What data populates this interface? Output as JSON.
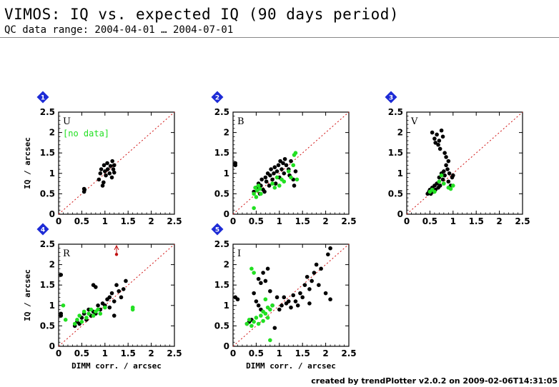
{
  "header": {
    "title": "VIMOS: IQ vs. expected IQ (90 days period)",
    "subtitle": "QC data range: 2004-04-01 … 2004-07-01"
  },
  "footer": {
    "text": "created by trendPlotter v2.0.2 on 2009-02-06T14:31:05"
  },
  "colors": {
    "accent_badge": "#1d2bd6",
    "diagonal": "#d01010",
    "series_black": "#000000",
    "series_green": "#22e022",
    "outlier_marker": "#c01010"
  },
  "chart_data": [
    {
      "type": "scatter",
      "panel": "1",
      "label": "U",
      "note": "[no data]",
      "xlabel": "",
      "ylabel": "IQ / arcsec",
      "xlim": [
        0,
        2.5
      ],
      "ylim": [
        0,
        2.5
      ],
      "x_ticks": [
        "0",
        "0.5",
        "1",
        "1.5",
        "2",
        "2.5"
      ],
      "y_ticks": [
        "0",
        "0.5",
        "1",
        "1.5",
        "2",
        "2.5"
      ],
      "reference_line": "y = x",
      "series": [
        {
          "color": "black",
          "points": [
            [
              0.55,
              0.55
            ],
            [
              0.55,
              0.62
            ],
            [
              0.56,
              0.6
            ],
            [
              0.87,
              0.85
            ],
            [
              0.9,
              1.0
            ],
            [
              0.92,
              1.1
            ],
            [
              0.95,
              0.7
            ],
            [
              0.97,
              0.78
            ],
            [
              0.98,
              1.2
            ],
            [
              1.0,
              1.05
            ],
            [
              1.02,
              0.95
            ],
            [
              1.05,
              1.25
            ],
            [
              1.06,
              1.1
            ],
            [
              1.1,
              1.0
            ],
            [
              1.12,
              1.18
            ],
            [
              1.15,
              0.9
            ],
            [
              1.16,
              1.3
            ],
            [
              1.18,
              1.1
            ],
            [
              1.2,
              1.2
            ],
            [
              1.2,
              1.02
            ]
          ]
        },
        {
          "color": "green",
          "points": []
        }
      ]
    },
    {
      "type": "scatter",
      "panel": "2",
      "label": "B",
      "xlabel": "",
      "ylabel": "",
      "xlim": [
        0,
        2.5
      ],
      "ylim": [
        0,
        2.5
      ],
      "x_ticks": [
        "0",
        "0.5",
        "1",
        "1.5",
        "2",
        "2.5"
      ],
      "y_ticks": [
        "0",
        "0.5",
        "1",
        "1.5",
        "2",
        "2.5"
      ],
      "reference_line": "y = x",
      "series": [
        {
          "color": "black",
          "points": [
            [
              0.05,
              1.25
            ],
            [
              0.05,
              1.2
            ],
            [
              0.45,
              0.55
            ],
            [
              0.5,
              0.65
            ],
            [
              0.55,
              0.75
            ],
            [
              0.6,
              0.7
            ],
            [
              0.62,
              0.85
            ],
            [
              0.65,
              0.6
            ],
            [
              0.7,
              0.9
            ],
            [
              0.72,
              0.8
            ],
            [
              0.75,
              1.0
            ],
            [
              0.78,
              0.7
            ],
            [
              0.8,
              0.95
            ],
            [
              0.82,
              1.1
            ],
            [
              0.85,
              0.85
            ],
            [
              0.88,
              1.0
            ],
            [
              0.9,
              1.15
            ],
            [
              0.92,
              0.75
            ],
            [
              0.95,
              1.05
            ],
            [
              0.98,
              1.2
            ],
            [
              1.0,
              0.9
            ],
            [
              1.02,
              1.3
            ],
            [
              1.05,
              1.1
            ],
            [
              1.08,
              1.25
            ],
            [
              1.1,
              1.0
            ],
            [
              1.12,
              1.35
            ],
            [
              1.15,
              1.2
            ],
            [
              1.2,
              1.1
            ],
            [
              1.22,
              0.95
            ],
            [
              1.25,
              1.3
            ],
            [
              1.3,
              0.85
            ],
            [
              1.32,
              0.7
            ],
            [
              1.35,
              1.05
            ],
            [
              0.68,
              0.55
            ],
            [
              0.58,
              0.5
            ]
          ]
        },
        {
          "color": "green",
          "points": [
            [
              0.45,
              0.15
            ],
            [
              0.45,
              0.5
            ],
            [
              0.48,
              0.65
            ],
            [
              0.5,
              0.42
            ],
            [
              0.52,
              0.58
            ],
            [
              0.55,
              0.7
            ],
            [
              0.58,
              0.62
            ],
            [
              0.6,
              0.5
            ],
            [
              0.85,
              0.75
            ],
            [
              0.9,
              0.65
            ],
            [
              0.95,
              0.9
            ],
            [
              1.0,
              0.7
            ],
            [
              1.05,
              0.85
            ],
            [
              1.1,
              0.8
            ],
            [
              1.2,
              1.05
            ],
            [
              1.25,
              0.9
            ],
            [
              1.3,
              1.2
            ],
            [
              1.32,
              1.45
            ],
            [
              1.35,
              1.5
            ],
            [
              1.38,
              0.85
            ]
          ]
        }
      ]
    },
    {
      "type": "scatter",
      "panel": "3",
      "label": "V",
      "xlabel": "",
      "ylabel": "",
      "xlim": [
        0,
        2.5
      ],
      "ylim": [
        0,
        2.5
      ],
      "x_ticks": [
        "0",
        "0.5",
        "1",
        "1.5",
        "2",
        "2.5"
      ],
      "y_ticks": [
        "0",
        "0.5",
        "1",
        "1.5",
        "2",
        "2.5"
      ],
      "reference_line": "y = x",
      "series": [
        {
          "color": "black",
          "points": [
            [
              0.45,
              0.5
            ],
            [
              0.48,
              0.55
            ],
            [
              0.5,
              0.6
            ],
            [
              0.52,
              0.5
            ],
            [
              0.55,
              0.65
            ],
            [
              0.58,
              0.55
            ],
            [
              0.6,
              0.7
            ],
            [
              0.62,
              0.6
            ],
            [
              0.65,
              0.75
            ],
            [
              0.68,
              0.65
            ],
            [
              0.7,
              0.9
            ],
            [
              0.72,
              0.7
            ],
            [
              0.75,
              1.0
            ],
            [
              0.78,
              0.85
            ],
            [
              0.8,
              1.05
            ],
            [
              0.82,
              0.95
            ],
            [
              0.85,
              1.2
            ],
            [
              0.88,
              1.1
            ],
            [
              0.9,
              0.8
            ],
            [
              0.92,
              1.0
            ],
            [
              0.95,
              0.7
            ],
            [
              0.98,
              0.9
            ],
            [
              1.0,
              0.95
            ],
            [
              0.6,
              1.85
            ],
            [
              0.62,
              1.75
            ],
            [
              0.65,
              1.95
            ],
            [
              0.68,
              1.7
            ],
            [
              0.7,
              1.8
            ],
            [
              0.72,
              1.6
            ],
            [
              0.75,
              2.05
            ],
            [
              0.78,
              1.9
            ],
            [
              0.55,
              2.0
            ],
            [
              0.85,
              1.4
            ],
            [
              0.9,
              1.3
            ],
            [
              0.82,
              1.5
            ]
          ]
        },
        {
          "color": "green",
          "points": [
            [
              0.5,
              0.55
            ],
            [
              0.55,
              0.6
            ],
            [
              0.6,
              0.55
            ],
            [
              0.7,
              0.8
            ],
            [
              0.75,
              0.95
            ],
            [
              0.8,
              0.75
            ],
            [
              0.9,
              0.65
            ],
            [
              0.95,
              0.62
            ],
            [
              1.0,
              0.7
            ]
          ]
        }
      ]
    },
    {
      "type": "scatter",
      "panel": "4",
      "label": "R",
      "xlabel": "DIMM corr. / arcsec",
      "ylabel": "IQ / arcsec",
      "xlim": [
        0,
        2.5
      ],
      "ylim": [
        0,
        2.5
      ],
      "x_ticks": [
        "0",
        "0.5",
        "1",
        "1.5",
        "2",
        "2.5"
      ],
      "y_ticks": [
        "0",
        "0.5",
        "1",
        "1.5",
        "2",
        "2.5"
      ],
      "reference_line": "y = x",
      "outlier": {
        "x": 1.25,
        "y": 2.25,
        "arrow": "up"
      },
      "series": [
        {
          "color": "black",
          "points": [
            [
              0.05,
              1.75
            ],
            [
              0.05,
              0.8
            ],
            [
              0.05,
              0.75
            ],
            [
              0.35,
              0.5
            ],
            [
              0.4,
              0.6
            ],
            [
              0.45,
              0.55
            ],
            [
              0.5,
              0.7
            ],
            [
              0.55,
              0.8
            ],
            [
              0.6,
              0.65
            ],
            [
              0.65,
              0.9
            ],
            [
              0.7,
              0.75
            ],
            [
              0.75,
              0.85
            ],
            [
              0.8,
              0.8
            ],
            [
              0.85,
              1.0
            ],
            [
              0.9,
              0.9
            ],
            [
              0.95,
              1.05
            ],
            [
              1.0,
              1.0
            ],
            [
              1.05,
              1.15
            ],
            [
              1.1,
              1.2
            ],
            [
              1.15,
              1.3
            ],
            [
              1.2,
              1.1
            ],
            [
              1.25,
              1.5
            ],
            [
              1.3,
              1.35
            ],
            [
              1.35,
              1.2
            ],
            [
              1.4,
              1.4
            ],
            [
              1.45,
              1.6
            ],
            [
              0.75,
              1.5
            ],
            [
              0.8,
              1.45
            ],
            [
              1.2,
              0.75
            ],
            [
              1.1,
              0.95
            ]
          ]
        },
        {
          "color": "green",
          "points": [
            [
              0.35,
              0.55
            ],
            [
              0.4,
              0.65
            ],
            [
              0.45,
              0.75
            ],
            [
              0.5,
              0.6
            ],
            [
              0.55,
              0.85
            ],
            [
              0.6,
              0.7
            ],
            [
              0.65,
              0.8
            ],
            [
              0.7,
              0.9
            ],
            [
              0.75,
              0.75
            ],
            [
              0.8,
              0.85
            ],
            [
              0.85,
              0.9
            ],
            [
              0.9,
              0.8
            ],
            [
              1.0,
              0.95
            ],
            [
              1.6,
              0.9
            ],
            [
              1.6,
              0.95
            ],
            [
              0.1,
              1.0
            ],
            [
              0.15,
              0.65
            ]
          ]
        }
      ]
    },
    {
      "type": "scatter",
      "panel": "5",
      "label": "I",
      "xlabel": "DIMM corr. / arcsec",
      "ylabel": "",
      "xlim": [
        0,
        2.5
      ],
      "ylim": [
        0,
        2.5
      ],
      "x_ticks": [
        "0",
        "0.5",
        "1",
        "1.5",
        "2",
        "2.5"
      ],
      "y_ticks": [
        "0",
        "0.5",
        "1",
        "1.5",
        "2",
        "2.5"
      ],
      "reference_line": "y = x",
      "series": [
        {
          "color": "black",
          "points": [
            [
              0.05,
              1.2
            ],
            [
              0.1,
              1.15
            ],
            [
              0.3,
              0.55
            ],
            [
              0.35,
              0.6
            ],
            [
              0.4,
              0.65
            ],
            [
              0.45,
              1.3
            ],
            [
              0.5,
              1.1
            ],
            [
              0.55,
              1.0
            ],
            [
              0.6,
              0.9
            ],
            [
              0.65,
              1.8
            ],
            [
              0.7,
              1.6
            ],
            [
              0.75,
              1.9
            ],
            [
              0.8,
              1.35
            ],
            [
              0.85,
              1.0
            ],
            [
              0.9,
              0.45
            ],
            [
              0.95,
              1.2
            ],
            [
              1.0,
              0.9
            ],
            [
              1.05,
              1.0
            ],
            [
              1.1,
              1.2
            ],
            [
              1.15,
              1.05
            ],
            [
              1.2,
              1.1
            ],
            [
              1.25,
              0.95
            ],
            [
              1.3,
              1.25
            ],
            [
              1.35,
              1.1
            ],
            [
              1.4,
              1.0
            ],
            [
              1.45,
              1.3
            ],
            [
              1.5,
              1.2
            ],
            [
              1.55,
              1.5
            ],
            [
              1.6,
              1.7
            ],
            [
              1.65,
              1.4
            ],
            [
              1.7,
              1.6
            ],
            [
              1.75,
              1.8
            ],
            [
              1.8,
              2.0
            ],
            [
              1.85,
              1.5
            ],
            [
              1.9,
              1.9
            ],
            [
              2.0,
              1.3
            ],
            [
              2.05,
              2.25
            ],
            [
              2.1,
              2.4
            ],
            [
              0.55,
              1.65
            ],
            [
              0.6,
              1.55
            ],
            [
              1.65,
              1.05
            ],
            [
              2.1,
              1.15
            ]
          ]
        },
        {
          "color": "green",
          "points": [
            [
              0.3,
              0.55
            ],
            [
              0.35,
              0.65
            ],
            [
              0.4,
              0.5
            ],
            [
              0.45,
              0.6
            ],
            [
              0.5,
              0.7
            ],
            [
              0.55,
              0.55
            ],
            [
              0.6,
              0.75
            ],
            [
              0.65,
              0.62
            ],
            [
              0.7,
              0.8
            ],
            [
              0.75,
              0.7
            ],
            [
              0.8,
              0.9
            ],
            [
              0.85,
              1.0
            ],
            [
              0.4,
              1.9
            ],
            [
              0.45,
              1.8
            ],
            [
              0.7,
              1.15
            ],
            [
              0.65,
              0.85
            ],
            [
              0.8,
              0.15
            ],
            [
              0.75,
              0.95
            ]
          ]
        }
      ]
    }
  ]
}
